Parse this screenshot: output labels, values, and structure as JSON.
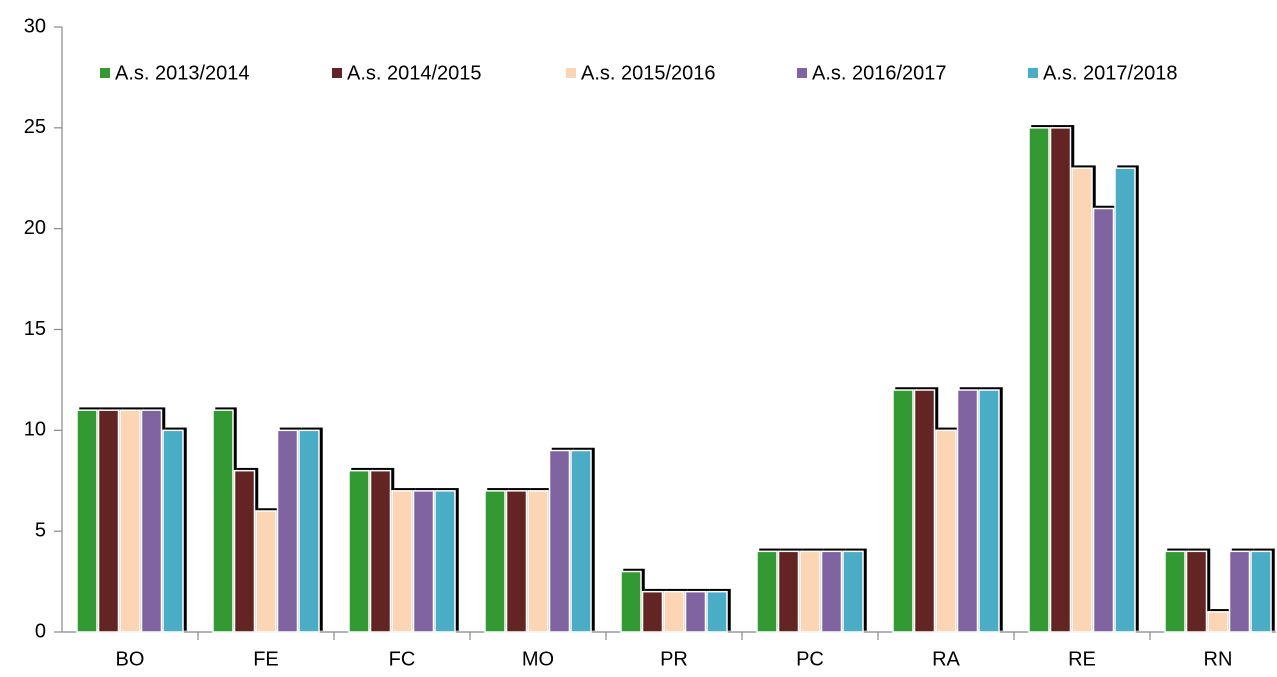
{
  "chart_data": {
    "type": "bar",
    "categories": [
      "BO",
      "FE",
      "FC",
      "MO",
      "PR",
      "PC",
      "RA",
      "RE",
      "RN"
    ],
    "series": [
      {
        "name": "A.s. 2013/2014",
        "color": "#339933",
        "values": [
          11,
          11,
          8,
          7,
          3,
          4,
          12,
          25,
          4
        ]
      },
      {
        "name": "A.s. 2014/2015",
        "color": "#632523",
        "values": [
          11,
          8,
          8,
          7,
          2,
          4,
          12,
          25,
          4
        ]
      },
      {
        "name": "A.s. 2015/2016",
        "color": "#fcd5b5",
        "values": [
          11,
          6,
          7,
          7,
          2,
          4,
          10,
          23,
          1
        ]
      },
      {
        "name": "A.s. 2016/2017",
        "color": "#8064a2",
        "values": [
          11,
          10,
          7,
          9,
          2,
          4,
          12,
          21,
          4
        ]
      },
      {
        "name": "A.s. 2017/2018",
        "color": "#4bacc6",
        "values": [
          10,
          10,
          7,
          9,
          2,
          4,
          12,
          23,
          4
        ]
      }
    ],
    "ylim": [
      0,
      30
    ],
    "yticks": [
      0,
      5,
      10,
      15,
      20,
      25,
      30
    ],
    "legend": "top"
  }
}
